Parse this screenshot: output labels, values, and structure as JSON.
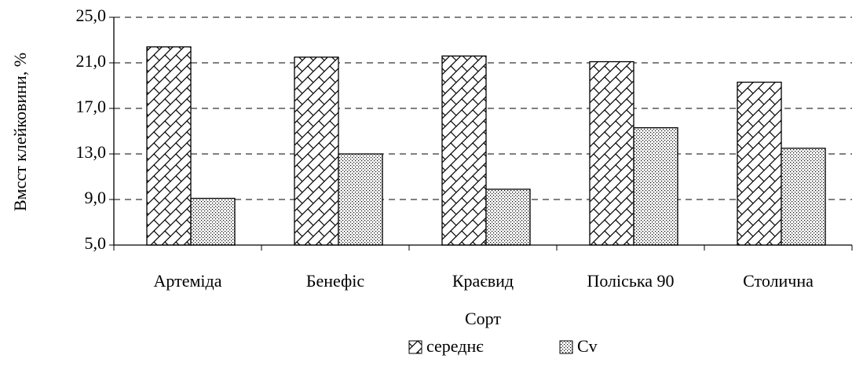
{
  "chart_data": {
    "type": "bar",
    "y_label": "Вмсст клейковини, %",
    "x_label": "Сорт",
    "categories": [
      "Артеміда",
      "Бенефіс",
      "Краєвид",
      "Поліська 90",
      "Столична"
    ],
    "series": [
      {
        "name": "середнє",
        "color": "#000000",
        "pattern": "crosshatch",
        "values": [
          22.4,
          21.5,
          21.6,
          21.1,
          19.3
        ]
      },
      {
        "name": "Cv",
        "color": "#000000",
        "pattern": "dots",
        "values": [
          9.1,
          13.0,
          9.9,
          15.3,
          13.5
        ]
      }
    ],
    "ylim": [
      5,
      25
    ],
    "yticks": [
      {
        "value": 5,
        "label": "5,0"
      },
      {
        "value": 9,
        "label": "9,0"
      },
      {
        "value": 13,
        "label": "13,0"
      },
      {
        "value": 17,
        "label": "17,0"
      },
      {
        "value": 21,
        "label": "21,0"
      },
      {
        "value": 25,
        "label": "25,0"
      }
    ],
    "grid": true,
    "legend": "bottom"
  }
}
